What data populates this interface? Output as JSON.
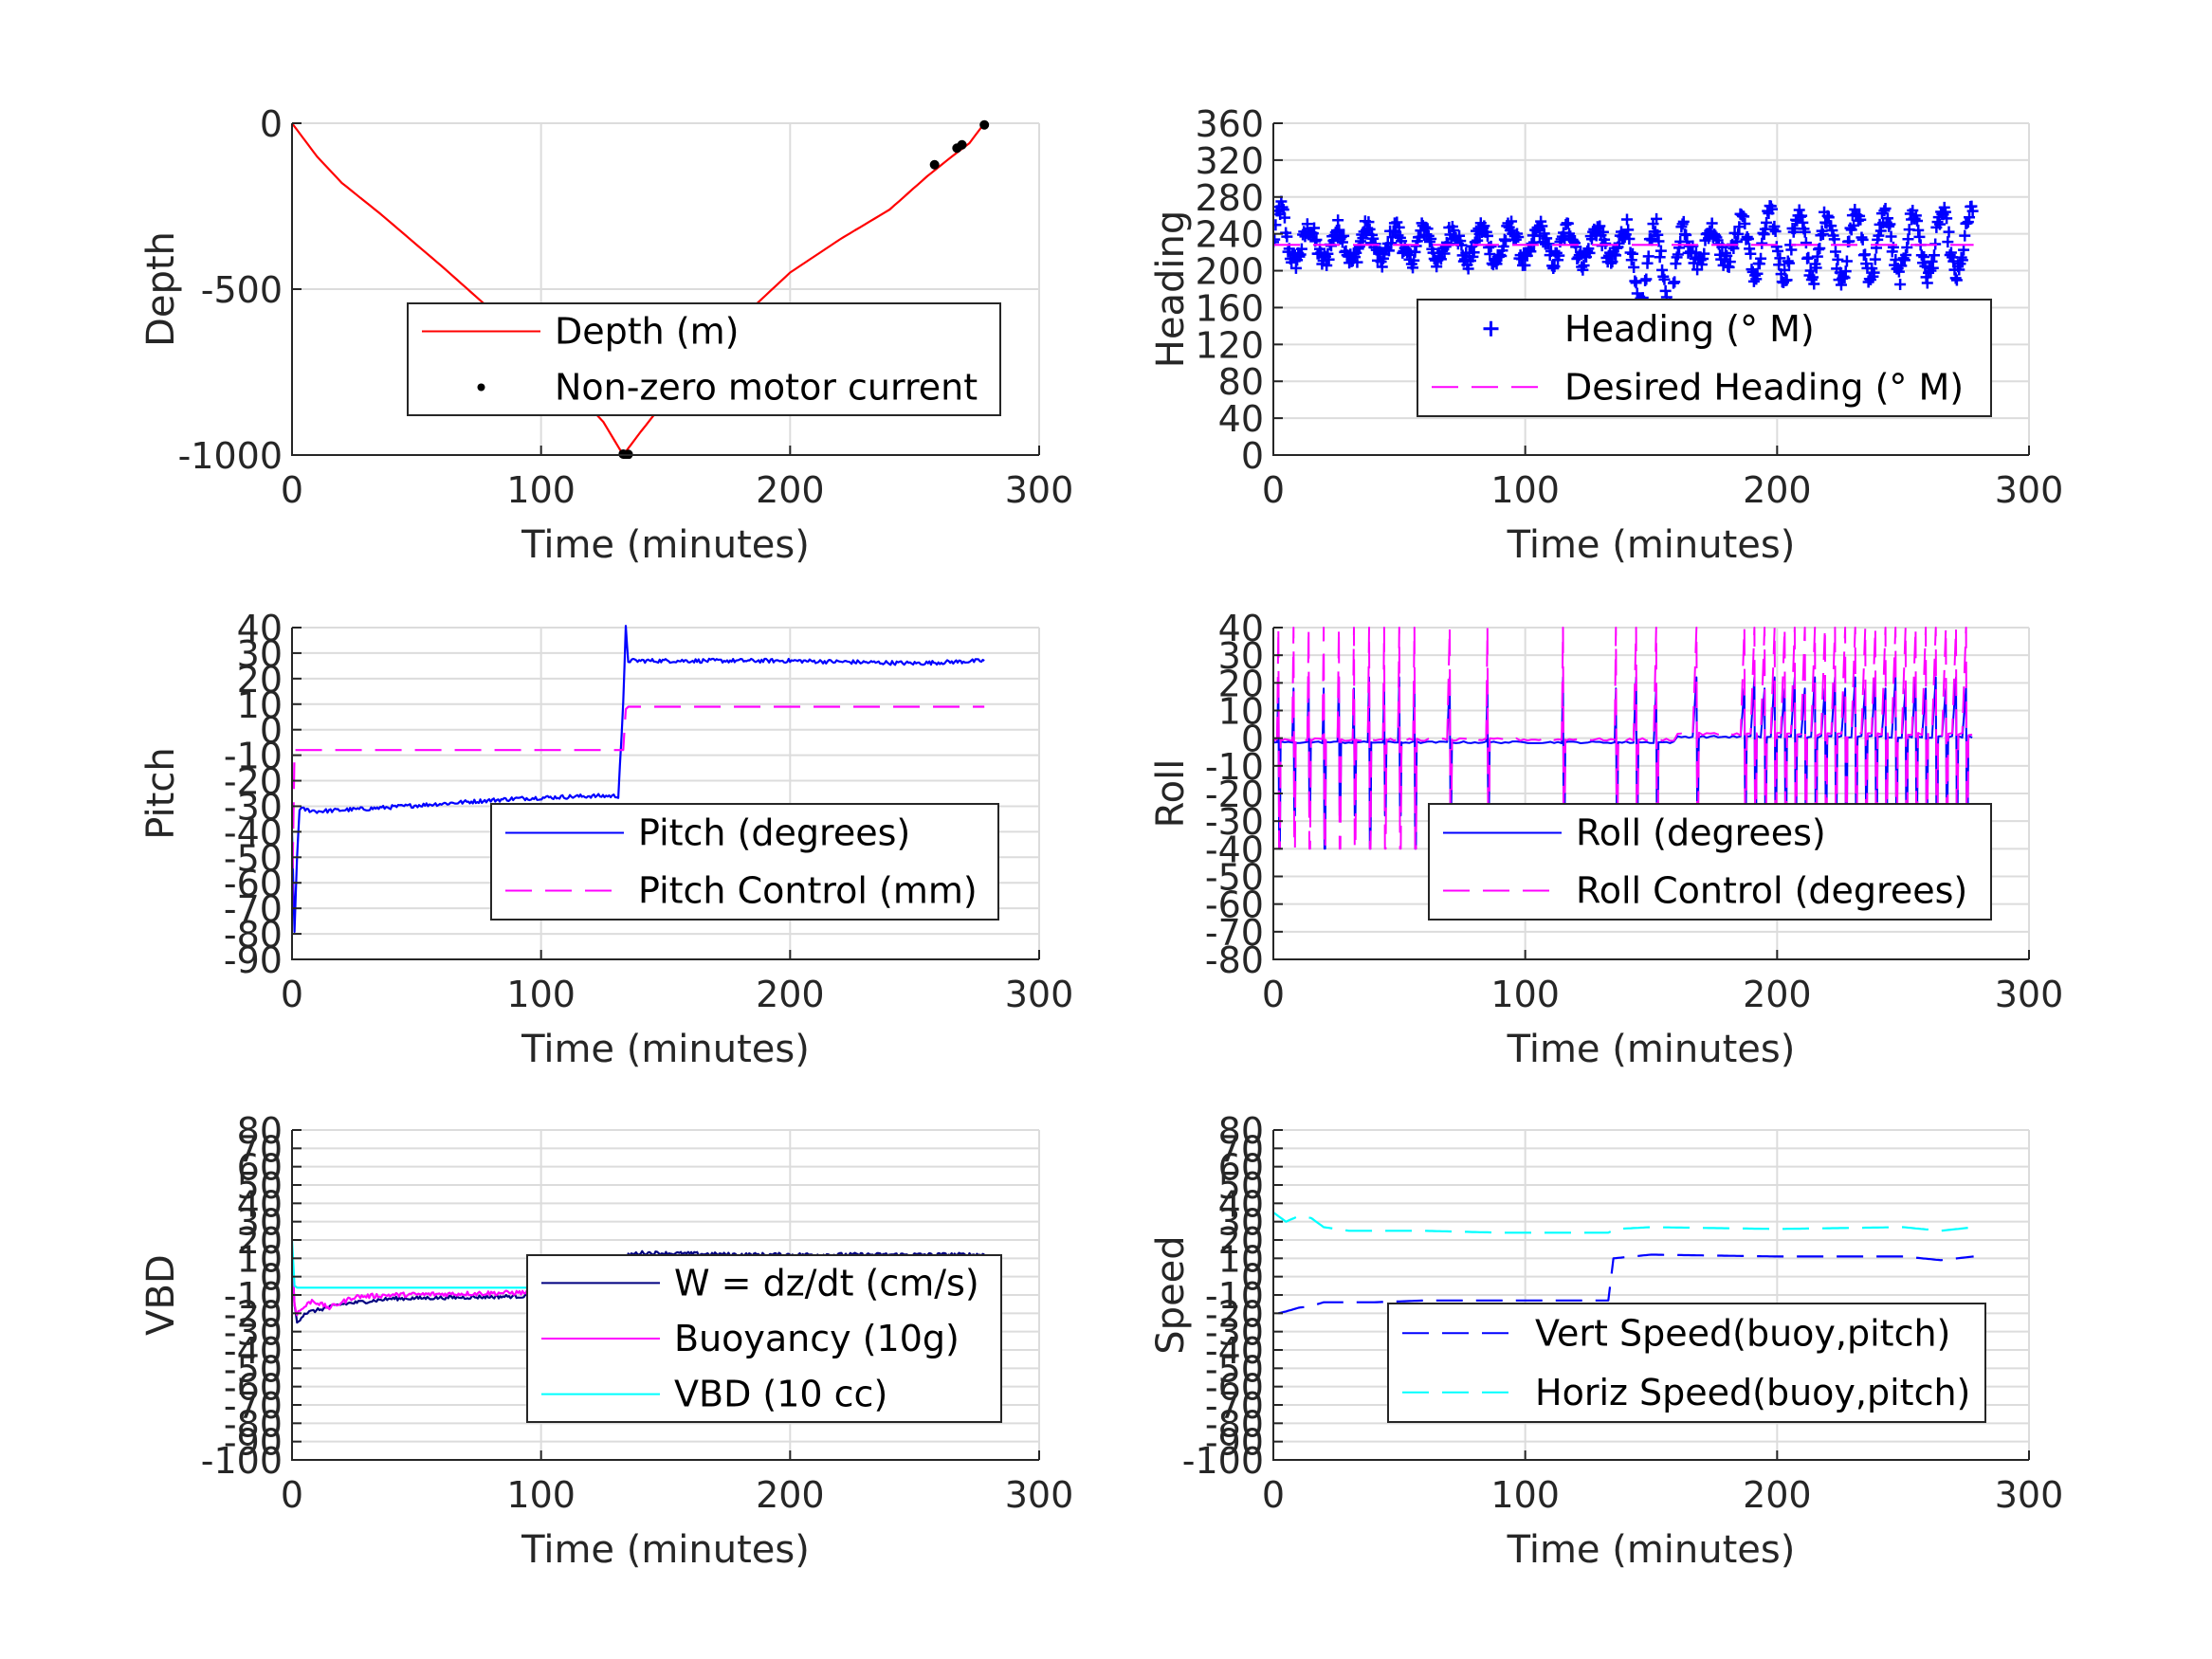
{
  "chart_data": [
    {
      "type": "line",
      "ylabel": "Depth",
      "xlabel": "Time (minutes)",
      "xlim": [
        0,
        300
      ],
      "ylim": [
        -1000,
        0
      ],
      "xticks": [
        "0",
        "100",
        "200",
        "300"
      ],
      "yticks": [
        "0",
        "-500",
        "-1000"
      ],
      "ytick_values": [
        0,
        -500,
        -1000
      ],
      "grid": true,
      "legend_position": "center-right",
      "series": [
        {
          "name": "Depth (m)",
          "color": "#ff0000",
          "style": "solid",
          "x": [
            0,
            10,
            20,
            35,
            60,
            90,
            110,
            125,
            133,
            140,
            160,
            180,
            200,
            220,
            240,
            255,
            265,
            272,
            278
          ],
          "y": [
            0,
            -100,
            -180,
            -270,
            -430,
            -630,
            -780,
            -900,
            -1000,
            -930,
            -740,
            -590,
            -450,
            -350,
            -260,
            -160,
            -100,
            -60,
            0
          ]
        },
        {
          "name": "Non-zero motor current",
          "color": "#000000",
          "style": "dots",
          "x": [
            133,
            134,
            135,
            258,
            267,
            269,
            278
          ],
          "y": [
            -997,
            -1000,
            -998,
            -125,
            -75,
            -65,
            -5
          ]
        }
      ]
    },
    {
      "type": "scatter",
      "ylabel": "Heading",
      "xlabel": "Time (minutes)",
      "xlim": [
        0,
        300
      ],
      "ylim": [
        0,
        360
      ],
      "xticks": [
        "0",
        "100",
        "200",
        "300"
      ],
      "yticks": [
        "360",
        "320",
        "280",
        "240",
        "200",
        "160",
        "120",
        "80",
        "40",
        "0"
      ],
      "ytick_values": [
        360,
        320,
        280,
        240,
        200,
        160,
        120,
        80,
        40,
        0
      ],
      "grid": true,
      "legend_position": "lower-right",
      "series": [
        {
          "name": "Heading (° M)",
          "color": "#0000ff",
          "style": "plus",
          "band": [
            190,
            260
          ],
          "x": [],
          "y": []
        },
        {
          "name": "Desired Heading (° M)",
          "color": "#ff00ff",
          "style": "dashed",
          "x": [
            0,
            278
          ],
          "y": [
            228,
            228
          ]
        }
      ]
    },
    {
      "type": "line",
      "ylabel": "Pitch",
      "xlabel": "Time (minutes)",
      "xlim": [
        0,
        300
      ],
      "ylim": [
        -90,
        40
      ],
      "xticks": [
        "0",
        "100",
        "200",
        "300"
      ],
      "yticks": [
        "40",
        "30",
        "20",
        "10",
        "0",
        "-10",
        "-20",
        "-30",
        "-40",
        "-50",
        "-60",
        "-70",
        "-80",
        "-90"
      ],
      "ytick_values": [
        40,
        30,
        20,
        10,
        0,
        -10,
        -20,
        -30,
        -40,
        -50,
        -60,
        -70,
        -80,
        -90
      ],
      "grid": true,
      "legend_position": "lower-right",
      "series": [
        {
          "name": "Pitch (degrees)",
          "color": "#0000ff",
          "style": "solid",
          "x": [
            0,
            1,
            2,
            3,
            10,
            30,
            60,
            90,
            120,
            131,
            133,
            134,
            135,
            137,
            150,
            200,
            250,
            278
          ],
          "y": [
            -40,
            -80,
            -50,
            -31,
            -32,
            -31,
            -29,
            -27,
            -26,
            -26,
            10,
            40,
            27,
            27,
            27,
            27,
            26,
            27
          ]
        },
        {
          "name": "Pitch Control (mm)",
          "color": "#ff00ff",
          "style": "dashed",
          "x": [
            0,
            1,
            2,
            133,
            134,
            135,
            278
          ],
          "y": [
            -70,
            -8,
            -8,
            -8,
            8,
            9,
            9
          ]
        }
      ]
    },
    {
      "type": "line",
      "ylabel": "Roll",
      "xlabel": "Time (minutes)",
      "xlim": [
        0,
        300
      ],
      "ylim": [
        -80,
        40
      ],
      "xticks": [
        "0",
        "100",
        "200",
        "300"
      ],
      "yticks": [
        "40",
        "30",
        "20",
        "10",
        "0",
        "-10",
        "-20",
        "-30",
        "-40",
        "-50",
        "-60",
        "-70",
        "-80"
      ],
      "ytick_values": [
        40,
        30,
        20,
        10,
        0,
        -10,
        -20,
        -30,
        -40,
        -50,
        -60,
        -70,
        -80
      ],
      "grid": true,
      "legend_position": "lower-right",
      "series": [
        {
          "name": "Roll (degrees)",
          "color": "#0000ff",
          "style": "solid",
          "base": -1.5,
          "amp": 0.7
        },
        {
          "name": "Roll Control (degrees)",
          "color": "#ff00ff",
          "style": "dashed",
          "base": -0.5,
          "amp": 1.0
        }
      ]
    },
    {
      "type": "line",
      "ylabel": "VBD",
      "xlabel": "Time (minutes)",
      "xlim": [
        0,
        300
      ],
      "ylim": [
        -100,
        80
      ],
      "xticks": [
        "0",
        "100",
        "200",
        "300"
      ],
      "yticks": [
        "80",
        "70",
        "60",
        "50",
        "40",
        "30",
        "20",
        "10",
        "0",
        "-10",
        "-20",
        "-30",
        "-40",
        "-50",
        "-60",
        "-70",
        "-80",
        "-90",
        "-100"
      ],
      "ytick_values": [
        80,
        70,
        60,
        50,
        40,
        30,
        20,
        10,
        0,
        -10,
        -20,
        -30,
        -40,
        -50,
        -60,
        -70,
        -80,
        -90,
        -100
      ],
      "grid": true,
      "legend_position": "lower-right",
      "series": [
        {
          "name": "W = dz/dt (cm/s)",
          "color": "#000080",
          "style": "solid",
          "x": [
            0,
            1,
            2,
            5,
            20,
            40,
            80,
            120,
            133,
            135,
            140,
            180,
            220,
            278
          ],
          "y": [
            10,
            -15,
            -25,
            -20,
            -15,
            -12,
            -11,
            -10,
            -10,
            12,
            13,
            12,
            12,
            12
          ]
        },
        {
          "name": "Buoyancy (10g)",
          "color": "#ff00ff",
          "style": "solid",
          "x": [
            0,
            1,
            2,
            8,
            15,
            25,
            40,
            80,
            120,
            133,
            135,
            140,
            200,
            250,
            265,
            278
          ],
          "y": [
            10,
            -15,
            -20,
            -13,
            -17,
            -11,
            -10,
            -9,
            -8,
            -8,
            9,
            10,
            10,
            9,
            7,
            8
          ]
        },
        {
          "name": "VBD (10 cc)",
          "color": "#00ffff",
          "style": "solid",
          "x": [
            0,
            1,
            2,
            133,
            135,
            278
          ],
          "y": [
            20,
            -5,
            -6,
            -6,
            9,
            9
          ]
        }
      ]
    },
    {
      "type": "line",
      "ylabel": "Speed",
      "xlabel": "Time (minutes)",
      "xlim": [
        0,
        300
      ],
      "ylim": [
        -100,
        80
      ],
      "xticks": [
        "0",
        "100",
        "200",
        "300"
      ],
      "yticks": [
        "80",
        "70",
        "60",
        "50",
        "40",
        "30",
        "20",
        "10",
        "0",
        "-10",
        "-20",
        "-30",
        "-40",
        "-50",
        "-60",
        "-70",
        "-80",
        "-90",
        "-100"
      ],
      "ytick_values": [
        80,
        70,
        60,
        50,
        40,
        30,
        20,
        10,
        0,
        -10,
        -20,
        -30,
        -40,
        -50,
        -60,
        -70,
        -80,
        -90,
        -100
      ],
      "grid": true,
      "legend_position": "lower-right",
      "series": [
        {
          "name": "Vert Speed(buoy,pitch)",
          "color": "#0000ff",
          "style": "dashed",
          "x": [
            2,
            5,
            10,
            15,
            20,
            40,
            60,
            90,
            120,
            133,
            135,
            150,
            200,
            250,
            265,
            278
          ],
          "y": [
            -20,
            -19,
            -17,
            -16,
            -14,
            -14,
            -13,
            -13,
            -13,
            -13,
            10,
            12,
            11,
            11,
            9,
            11
          ]
        },
        {
          "name": "Horiz Speed(buoy,pitch)",
          "color": "#00ffff",
          "style": "dashed",
          "x": [
            0,
            5,
            10,
            15,
            20,
            30,
            60,
            90,
            120,
            133,
            136,
            150,
            200,
            250,
            265,
            278
          ],
          "y": [
            35,
            30,
            33,
            32,
            27,
            25,
            25,
            24,
            24,
            24,
            26,
            27,
            26,
            27,
            25,
            27
          ]
        }
      ]
    }
  ]
}
